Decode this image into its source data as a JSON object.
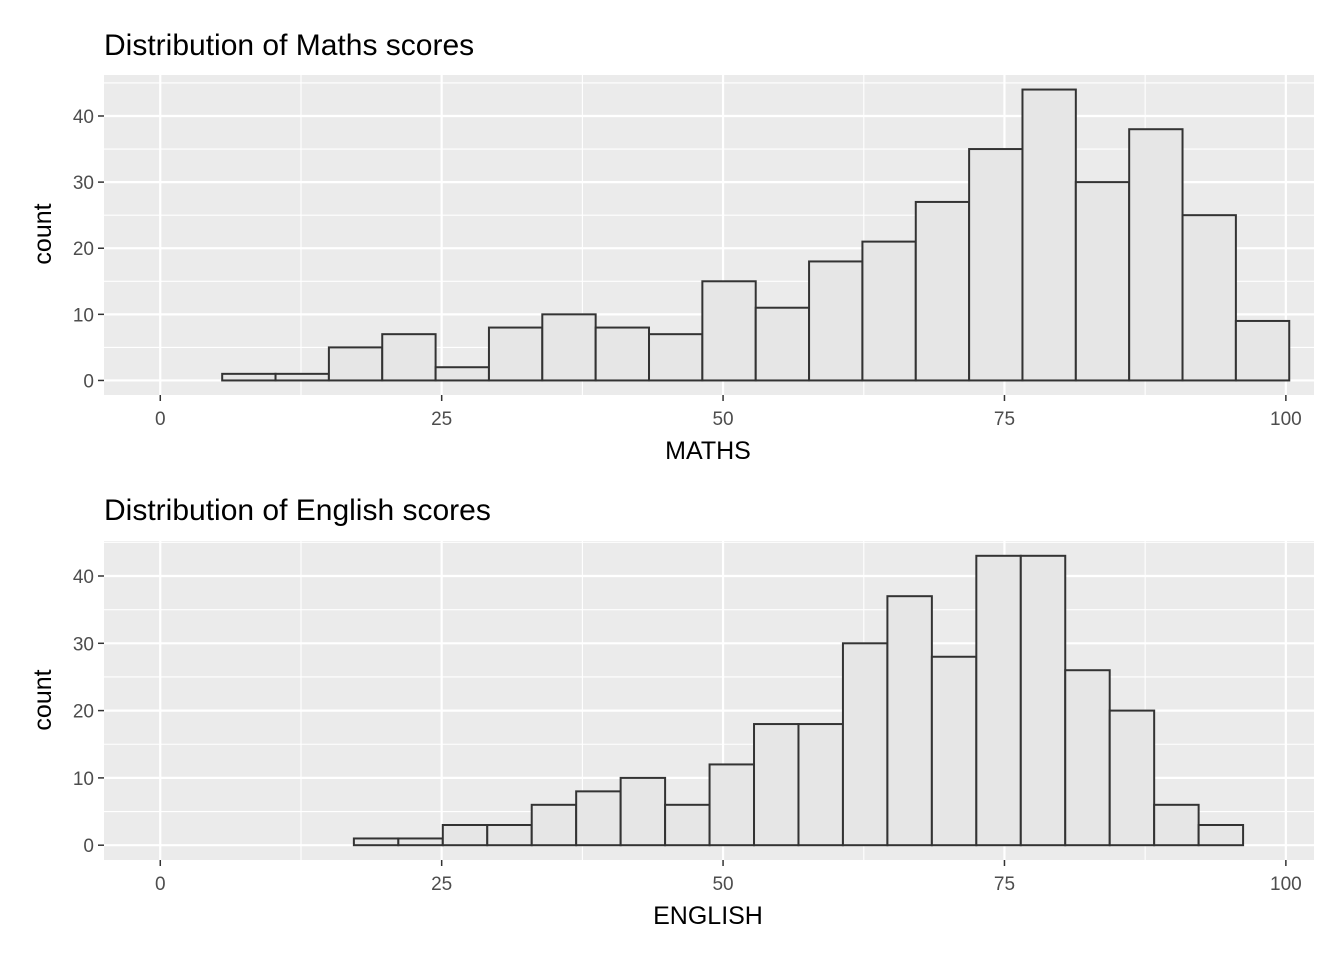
{
  "chart_data": [
    {
      "type": "bar",
      "title": "Distribution of Maths scores",
      "xlabel": "MATHS",
      "ylabel": "count",
      "xlim": [
        -5,
        102.5
      ],
      "ylim": [
        -2.2,
        46.2
      ],
      "x_ticks": [
        0,
        25,
        50,
        75,
        100
      ],
      "y_ticks": [
        0,
        10,
        20,
        30,
        40
      ],
      "grid": true,
      "bin_width": 4.74,
      "bin_start": 5.5,
      "values": [
        1,
        1,
        5,
        7,
        2,
        8,
        10,
        8,
        7,
        15,
        11,
        18,
        21,
        27,
        35,
        44,
        30,
        38,
        25,
        9
      ],
      "colors": {
        "panel": "#ebebeb",
        "grid": "#ffffff",
        "bar_fill": "#e6e6e6",
        "bar_stroke": "#333333"
      }
    },
    {
      "type": "bar",
      "title": "Distribution of English scores",
      "xlabel": "ENGLISH",
      "ylabel": "count",
      "xlim": [
        -5,
        102.5
      ],
      "ylim": [
        -2.2,
        45.2
      ],
      "x_ticks": [
        0,
        25,
        50,
        75,
        100
      ],
      "y_ticks": [
        0,
        10,
        20,
        30,
        40
      ],
      "grid": true,
      "bin_width": 3.95,
      "bin_start": 17.2,
      "values": [
        1,
        1,
        3,
        3,
        6,
        8,
        10,
        6,
        12,
        18,
        18,
        30,
        37,
        28,
        43,
        43,
        26,
        20,
        6,
        3
      ],
      "colors": {
        "panel": "#ebebeb",
        "grid": "#ffffff",
        "bar_fill": "#e6e6e6",
        "bar_stroke": "#333333"
      }
    }
  ]
}
